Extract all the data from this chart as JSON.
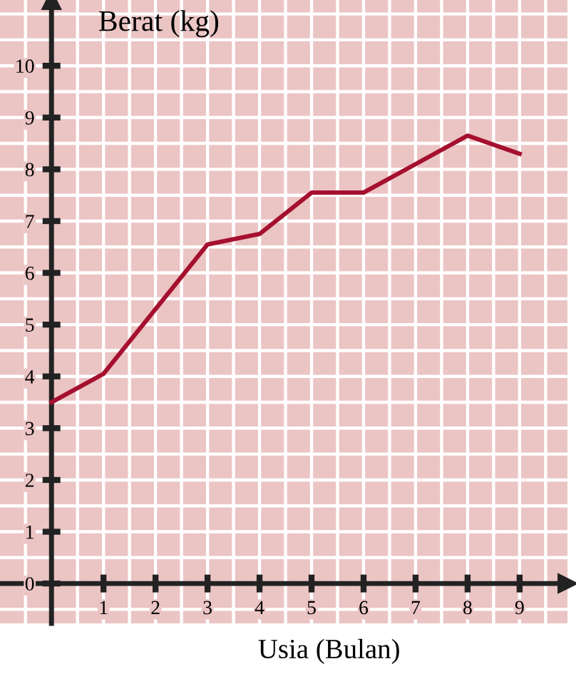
{
  "chart_data": {
    "type": "line",
    "xlabel": "Usia (Bulan)",
    "ylabel": "Berat (kg)",
    "x": [
      0,
      1,
      2,
      3,
      4,
      5,
      6,
      7,
      8,
      9
    ],
    "series": [
      {
        "color": "#a5102f",
        "values": [
          3.5,
          4.05,
          5.3,
          6.55,
          6.75,
          7.55,
          7.55,
          8.1,
          8.65,
          8.3
        ]
      }
    ],
    "xlim": [
      -0.99,
      9.92
    ],
    "ylim": [
      -0.77,
      11.27
    ],
    "xticks": [
      1,
      2,
      3,
      4,
      5,
      6,
      7,
      8,
      9
    ],
    "yticks": [
      0,
      1,
      2,
      3,
      4,
      5,
      6,
      7,
      8,
      9,
      10
    ],
    "grid": true,
    "marker": "none",
    "line_style": "solid"
  }
}
